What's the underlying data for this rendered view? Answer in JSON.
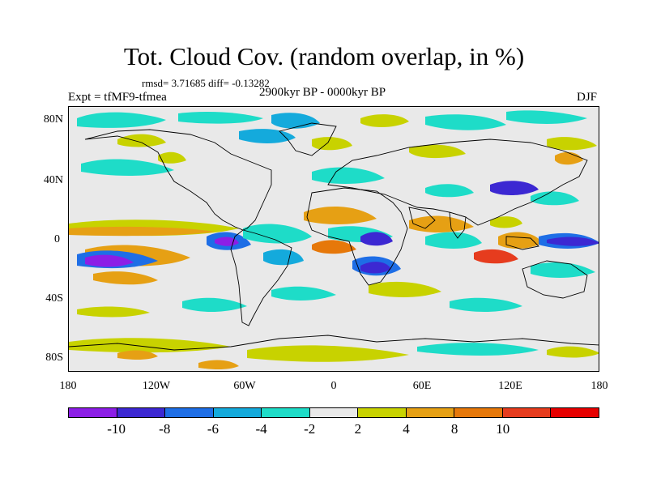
{
  "title": "Tot. Cloud Cov. (random overlap, in %)",
  "stats": "rmsd= 3.71685 diff= -0.13282",
  "experiment": "Expt = tfMF9-tfmea",
  "period": "2900kyr BP - 0000kyr BP",
  "season": "DJF",
  "lat_labels": [
    "80N",
    "40N",
    "0",
    "40S",
    "80S"
  ],
  "lon_labels": [
    "180",
    "120W",
    "60W",
    "0",
    "60E",
    "120E",
    "180"
  ],
  "colorbar": {
    "colors": [
      "#8c1ee6",
      "#3c28d2",
      "#1e6ee6",
      "#14aadc",
      "#1edcc8",
      "#e9e9e9",
      "#c8d200",
      "#e6a014",
      "#e6780a",
      "#e63c1e",
      "#e60000"
    ],
    "labels": [
      "-10",
      "-8",
      "-6",
      "-4",
      "-2",
      "2",
      "4",
      "8",
      "10"
    ]
  }
}
